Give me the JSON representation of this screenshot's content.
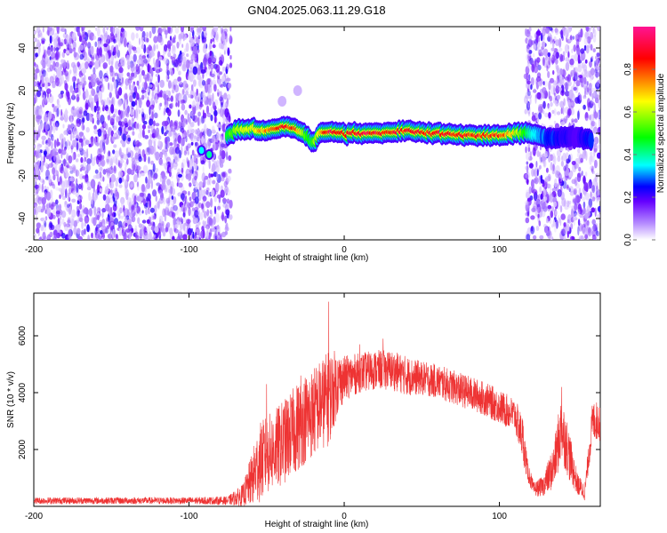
{
  "title": "GN04.2025.063.11.29.G18",
  "chart_data": [
    {
      "type": "heatmap",
      "xlabel": "Height of straight line (km)",
      "ylabel": "Frequency (Hz)",
      "xlim": [
        -200,
        165
      ],
      "ylim": [
        -50,
        50
      ],
      "x_ticks": [
        -200,
        -100,
        0,
        100
      ],
      "y_ticks": [
        -40,
        -20,
        0,
        20,
        40
      ],
      "colorbar": {
        "label": "Normalized spectral amplitude",
        "range": [
          0,
          1
        ],
        "ticks": [
          0.0,
          0.2,
          0.4,
          0.6,
          0.8
        ],
        "tick_labels": [
          "0.0",
          "0.2",
          "0.4",
          "0.6",
          "0.8"
        ],
        "colormap": [
          "#ffffff",
          "#8a2be2",
          "#0000ff",
          "#00ffff",
          "#00ff00",
          "#ffff00",
          "#ff0000",
          "#ff1493"
        ]
      },
      "noise_regions": [
        [
          -200,
          -73
        ],
        [
          117,
          165
        ]
      ],
      "signal_track": {
        "x": [
          -75,
          -70,
          -60,
          -50,
          -40,
          -30,
          -25,
          -20,
          -15,
          -10,
          0,
          20,
          40,
          60,
          80,
          100,
          110,
          120,
          130,
          140,
          150,
          160
        ],
        "frequency": [
          -1,
          1,
          2,
          1,
          3,
          2,
          -1,
          -4,
          0,
          1,
          0,
          0,
          1,
          0,
          -1,
          -1,
          0,
          0,
          -2,
          -2,
          -2,
          -3
        ],
        "peak_amplitude": [
          0.5,
          0.6,
          0.7,
          0.8,
          0.95,
          0.85,
          0.6,
          0.5,
          0.8,
          0.95,
          0.95,
          0.95,
          0.9,
          0.95,
          0.9,
          0.9,
          0.7,
          0.4,
          0.3,
          0.25,
          0.2,
          0.3
        ]
      },
      "isolated_blobs": [
        {
          "x": -92,
          "frequency": -8,
          "amplitude": 0.35
        },
        {
          "x": -87,
          "frequency": -10,
          "amplitude": 0.4
        },
        {
          "x": -30,
          "frequency": 20,
          "amplitude": 0.05
        },
        {
          "x": -40,
          "frequency": 15,
          "amplitude": 0.05
        }
      ],
      "color_series": "#8a2be2"
    },
    {
      "type": "line",
      "xlabel": "Height of straight line (km)",
      "ylabel": "SNR (10 * v/v)",
      "xlim": [
        -200,
        165
      ],
      "ylim": [
        0,
        7500
      ],
      "x_ticks": [
        -200,
        -100,
        0,
        100
      ],
      "y_ticks": [
        2000,
        4000,
        6000
      ],
      "color": "#ee3333",
      "envelope": {
        "x": [
          -200,
          -150,
          -100,
          -75,
          -65,
          -60,
          -55,
          -50,
          -45,
          -40,
          -35,
          -30,
          -25,
          -20,
          -15,
          -10,
          -5,
          0,
          10,
          20,
          30,
          40,
          50,
          60,
          70,
          80,
          90,
          100,
          110,
          115,
          118,
          122,
          128,
          135,
          140,
          145,
          150,
          155,
          160,
          165
        ],
        "mean": [
          200,
          200,
          200,
          200,
          400,
          900,
          1500,
          1800,
          2000,
          2200,
          2500,
          2800,
          3100,
          3300,
          3600,
          3800,
          4300,
          4500,
          4700,
          4800,
          4800,
          4600,
          4500,
          4400,
          4200,
          4000,
          3800,
          3500,
          3200,
          2400,
          1300,
          600,
          700,
          1400,
          2800,
          1800,
          800,
          500,
          3000,
          3000
        ],
        "spread": [
          120,
          120,
          120,
          150,
          400,
          900,
          1400,
          1400,
          1400,
          1500,
          1500,
          1600,
          1600,
          1600,
          1600,
          1700,
          1200,
          800,
          700,
          700,
          700,
          700,
          600,
          600,
          600,
          600,
          600,
          600,
          600,
          800,
          400,
          250,
          350,
          800,
          1200,
          900,
          400,
          300,
          700,
          700
        ]
      },
      "peaks": [
        {
          "x": -10,
          "y": 7200
        },
        {
          "x": -28,
          "y": 4600
        },
        {
          "x": -50,
          "y": 4300
        },
        {
          "x": 10,
          "y": 5700
        },
        {
          "x": 25,
          "y": 5900
        },
        {
          "x": 140,
          "y": 4200
        }
      ]
    }
  ]
}
